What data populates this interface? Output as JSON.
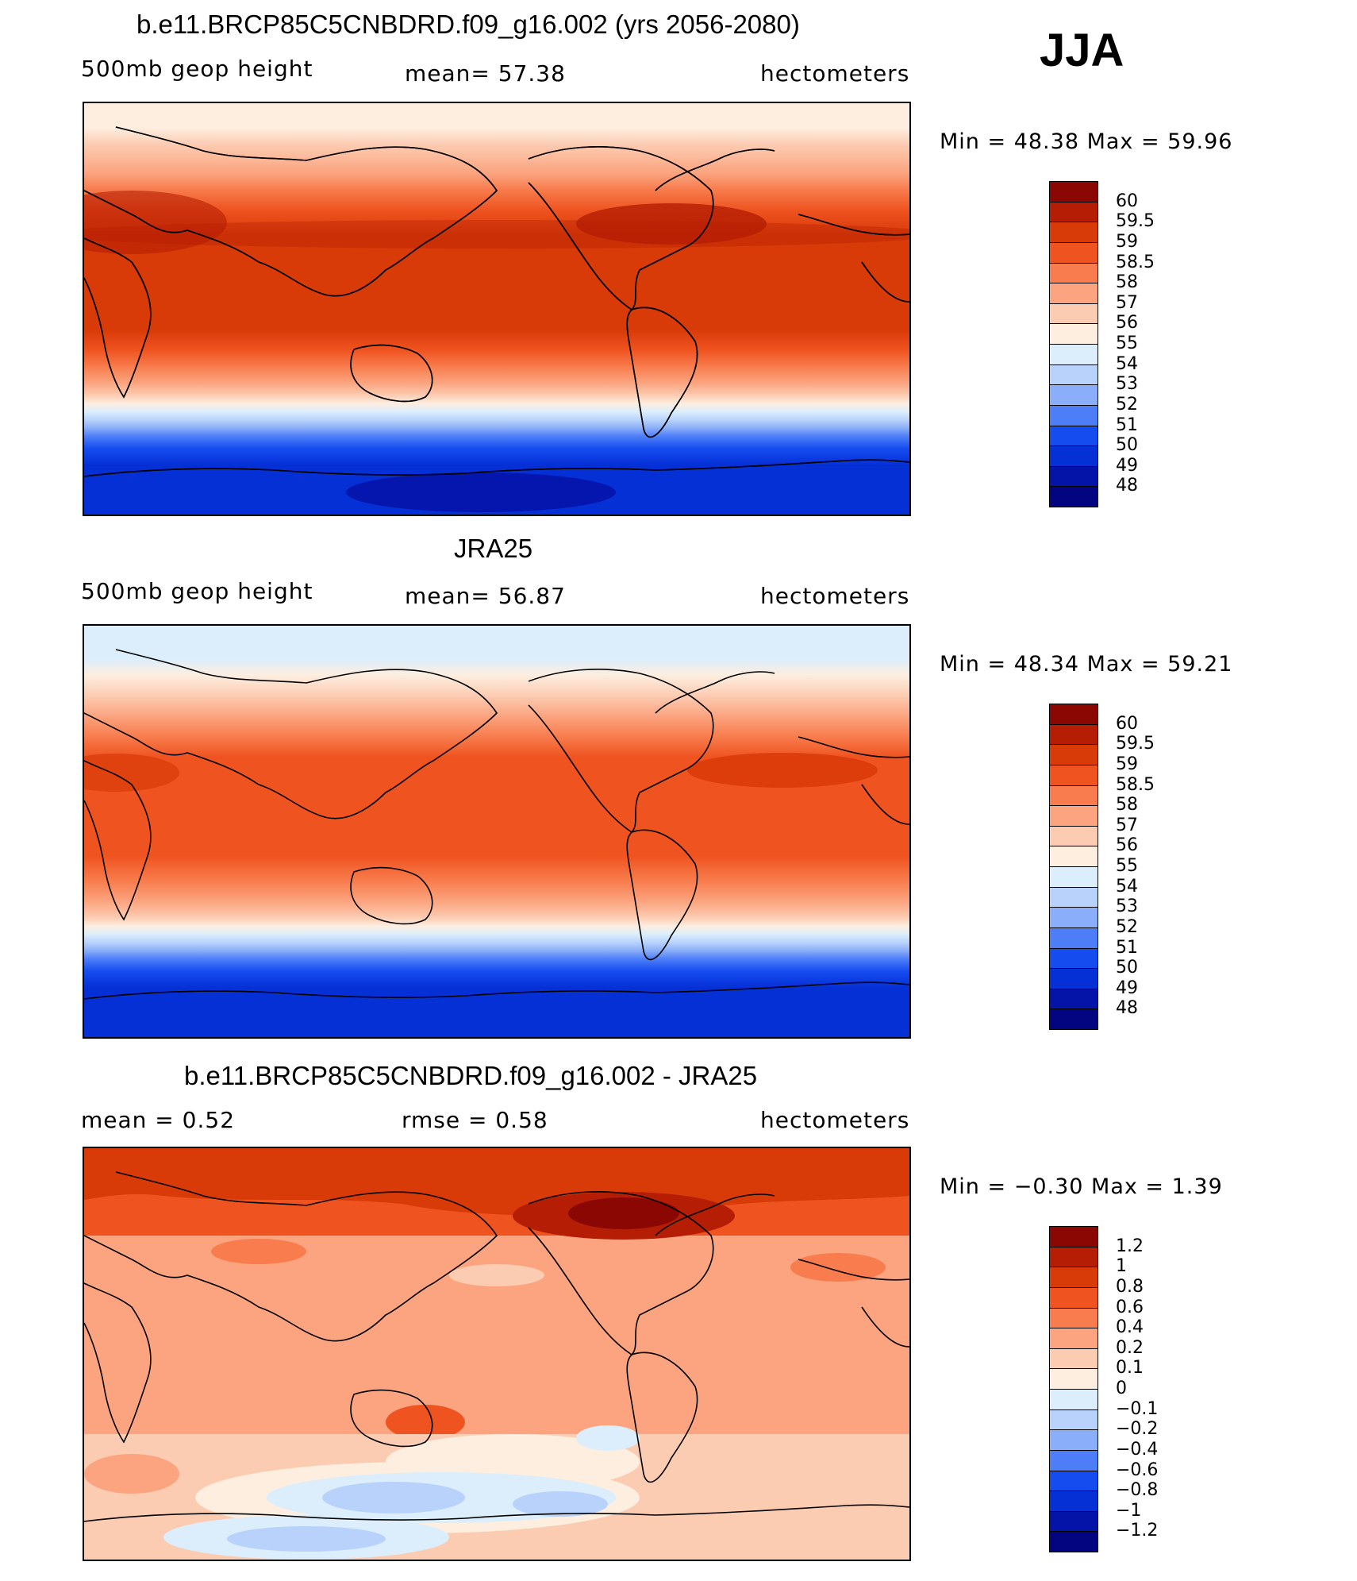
{
  "season": "JJA",
  "panels": [
    {
      "title": "b.e11.BRCP85C5CNBDRD.f09_g16.002 (yrs 2056-2080)",
      "left_label": "500mb  geop  height",
      "center_label": "mean=   57.38",
      "right_label": "hectometers",
      "minmax": "Min =   48.38  Max =   59.96",
      "colors": [
        "#03047f",
        "#0414a8",
        "#0530d6",
        "#154cf0",
        "#4d7ef8",
        "#8aaef9",
        "#b8d2fb",
        "#dceefc",
        "#fdeee0",
        "#fcccb2",
        "#fba47f",
        "#f87c4d",
        "#ef5320",
        "#d83a08",
        "#b51e04",
        "#8a0704"
      ],
      "labels": [
        "48",
        "49",
        "50",
        "51",
        "52",
        "53",
        "54",
        "55",
        "56",
        "57",
        "58",
        "58.5",
        "59",
        "59.5",
        "60"
      ]
    },
    {
      "title": "JRA25",
      "left_label": "500mb  geop  height",
      "center_label": "mean=   56.87",
      "right_label": "hectometers",
      "minmax": "Min =   48.34  Max =   59.21",
      "colors": [
        "#03047f",
        "#0414a8",
        "#0530d6",
        "#154cf0",
        "#4d7ef8",
        "#8aaef9",
        "#b8d2fb",
        "#dceefc",
        "#fdeee0",
        "#fcccb2",
        "#fba47f",
        "#f87c4d",
        "#ef5320",
        "#d83a08",
        "#b51e04",
        "#8a0704"
      ],
      "labels": [
        "48",
        "49",
        "50",
        "51",
        "52",
        "53",
        "54",
        "55",
        "56",
        "57",
        "58",
        "58.5",
        "59",
        "59.5",
        "60"
      ]
    },
    {
      "title": "b.e11.BRCP85C5CNBDRD.f09_g16.002 - JRA25",
      "left_label": "mean =     0.52",
      "center_label": "rmse =     0.58",
      "right_label": "hectometers",
      "minmax": "Min =   −0.30  Max =     1.39",
      "colors": [
        "#03047f",
        "#0414a8",
        "#0530d6",
        "#154cf0",
        "#4d7ef8",
        "#8aaef9",
        "#b8d2fb",
        "#dceefc",
        "#fdeee0",
        "#fcccb2",
        "#fba47f",
        "#f87c4d",
        "#ef5320",
        "#d83a08",
        "#b51e04",
        "#8a0704"
      ],
      "labels": [
        "−1.2",
        "−1",
        "−0.8",
        "−0.6",
        "−0.4",
        "−0.2",
        "−0.1",
        "0",
        "0.1",
        "0.2",
        "0.4",
        "0.6",
        "0.8",
        "1",
        "1.2"
      ]
    }
  ]
}
